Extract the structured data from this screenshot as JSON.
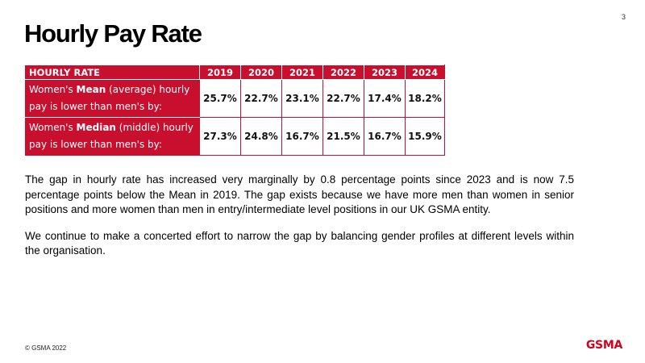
{
  "page_number": "3",
  "title": "Hourly Pay Rate",
  "table": {
    "header_label": "HOURLY RATE",
    "years": [
      "2019",
      "2020",
      "2021",
      "2022",
      "2023",
      "2024"
    ],
    "rows": [
      {
        "label_pre": "Women's ",
        "label_bold": "Mean",
        "label_post": " (average) hourly pay is lower than men's by:",
        "values": [
          "25.7%",
          "22.7%",
          "23.1%",
          "22.7%",
          "17.4%",
          "18.2%"
        ]
      },
      {
        "label_pre": "Women's ",
        "label_bold": "Median",
        "label_post": " (middle) hourly pay is lower than men's by:",
        "values": [
          "27.3%",
          "24.8%",
          "16.7%",
          "21.5%",
          "16.7%",
          "15.9%"
        ]
      }
    ]
  },
  "paragraphs": [
    "The gap in hourly rate has increased very marginally by 0.8 percentage points since 2023 and is now 7.5 percentage points below the Mean in 2019. The gap exists because we have more men than women in senior positions and more women than men in entry/intermediate level positions in our UK GSMA entity.",
    "We continue to make a concerted effort to narrow the gap by balancing gender profiles at different levels within the organisation."
  ],
  "footer": {
    "copyright": "© GSMA 2022",
    "logo_text": "GSMA"
  },
  "colors": {
    "brand_red": "#c8102e",
    "logo_red": "#d5001c"
  }
}
